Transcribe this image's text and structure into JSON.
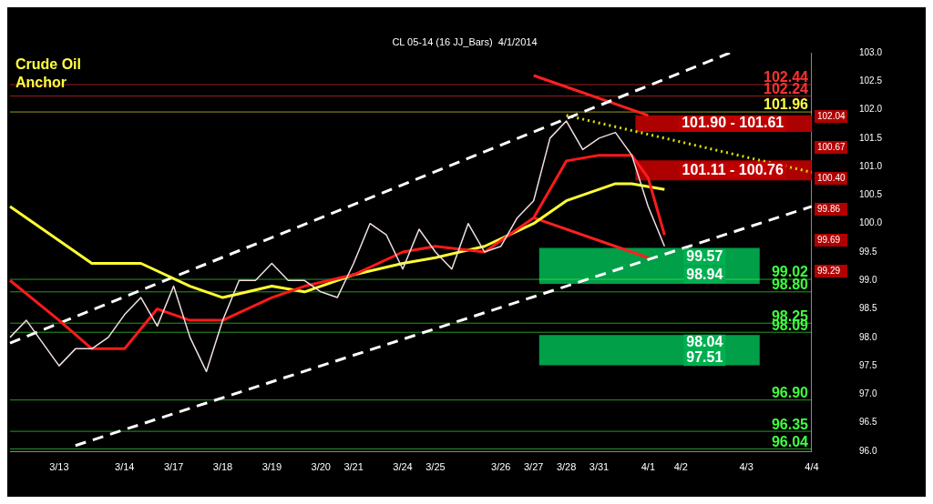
{
  "chart_data": {
    "type": "line",
    "title": "CL 05-14 (16 JJ_Bars)  4/1/2014",
    "categories": [
      null,
      null,
      null,
      "3/13",
      null,
      null,
      null,
      "3/14",
      null,
      null,
      "3/17",
      null,
      null,
      "3/18",
      null,
      null,
      "3/19",
      null,
      null,
      "3/20",
      null,
      "3/21",
      null,
      null,
      "3/24",
      null,
      "3/25",
      null,
      null,
      null,
      "3/26",
      null,
      "3/27",
      null,
      "3/28",
      null,
      "3/31",
      null,
      null,
      "4/1",
      null,
      "4/2",
      null,
      null,
      null,
      "4/3",
      null,
      null,
      null,
      "4/4"
    ],
    "ylim": [
      96,
      103
    ],
    "yticks": [
      {
        "value": 96,
        "label": "96.0"
      },
      96.5,
      {
        "value": 97,
        "label": "97.0"
      },
      97.5,
      {
        "value": 98,
        "label": "98.0"
      },
      98.5,
      {
        "value": 99,
        "label": "99.0"
      },
      99.5,
      {
        "value": 100,
        "label": "100.0"
      },
      100.5,
      {
        "value": 101,
        "label": "101.0"
      },
      101.5,
      {
        "value": 102,
        "label": "102.0"
      },
      102.5,
      {
        "value": 103,
        "label": "103.0"
      }
    ],
    "grid": false,
    "legend": false,
    "marker": "none",
    "series": [
      {
        "type": "line",
        "color": "#f0e0e0",
        "line_style": "solid",
        "values": [
          98.0,
          98.3,
          97.9,
          97.5,
          97.8,
          97.8,
          98.0,
          98.4,
          98.7,
          98.2,
          98.9,
          98.0,
          97.4,
          98.3,
          99.0,
          99.0,
          99.3,
          99.0,
          99.0,
          98.8,
          98.7,
          99.3,
          100.0,
          99.8,
          99.2,
          99.9,
          99.5,
          99.2,
          100.0,
          99.5,
          99.6,
          100.1,
          100.4,
          101.5,
          101.8,
          101.3,
          101.5,
          101.6,
          101.2,
          100.3,
          99.6,
          null,
          null,
          null,
          null,
          null,
          null,
          null,
          null,
          null
        ]
      },
      {
        "type": "line",
        "color": "#ff1a1a",
        "line_style": "solid",
        "values": [
          99.0,
          null,
          null,
          98.3,
          null,
          97.8,
          null,
          97.8,
          null,
          98.5,
          null,
          98.3,
          null,
          98.3,
          null,
          null,
          98.7,
          null,
          98.9,
          null,
          null,
          99.1,
          null,
          null,
          99.5,
          null,
          99.6,
          null,
          null,
          99.5,
          null,
          null,
          100.1,
          null,
          101.1,
          null,
          101.2,
          null,
          101.2,
          100.8,
          99.8,
          null,
          null,
          null,
          null,
          null,
          null,
          null,
          null,
          null
        ]
      },
      {
        "type": "line",
        "color": "#ffff33",
        "line_style": "solid",
        "values": [
          100.3,
          null,
          null,
          99.7,
          null,
          99.3,
          null,
          null,
          99.3,
          null,
          null,
          98.9,
          null,
          98.7,
          null,
          null,
          98.9,
          null,
          98.8,
          null,
          null,
          99.1,
          null,
          null,
          99.3,
          null,
          99.4,
          null,
          null,
          99.6,
          null,
          null,
          100.0,
          null,
          100.4,
          null,
          null,
          100.7,
          100.7,
          null,
          100.6,
          null,
          null,
          null,
          null,
          null,
          null,
          null,
          null,
          null
        ]
      },
      {
        "type": "line",
        "color": "#ffffff",
        "line_style": "dashed",
        "values": [
          97.9,
          null,
          null,
          null,
          null,
          null,
          null,
          null,
          null,
          null,
          null,
          null,
          null,
          null,
          null,
          null,
          null,
          null,
          null,
          null,
          null,
          null,
          null,
          null,
          null,
          null,
          null,
          null,
          null,
          null,
          null,
          null,
          null,
          null,
          null,
          null,
          null,
          null,
          null,
          null,
          null,
          null,
          null,
          null,
          103.0,
          null,
          null,
          null,
          null,
          null
        ]
      },
      {
        "type": "line",
        "color": "#ffffff",
        "line_style": "dashed",
        "values": [
          null,
          null,
          null,
          null,
          96.1,
          null,
          null,
          null,
          null,
          null,
          null,
          null,
          null,
          null,
          null,
          null,
          null,
          null,
          null,
          null,
          null,
          null,
          null,
          null,
          null,
          null,
          null,
          null,
          null,
          null,
          null,
          null,
          null,
          null,
          null,
          null,
          null,
          null,
          null,
          null,
          null,
          null,
          null,
          null,
          null,
          null,
          null,
          null,
          null,
          100.3
        ]
      },
      {
        "type": "line",
        "color": "#e0e000",
        "line_style": "dotted",
        "values": [
          null,
          null,
          null,
          null,
          null,
          null,
          null,
          null,
          null,
          null,
          null,
          null,
          null,
          null,
          null,
          null,
          null,
          null,
          null,
          null,
          null,
          null,
          null,
          null,
          null,
          null,
          null,
          null,
          null,
          null,
          null,
          null,
          null,
          null,
          101.9,
          null,
          null,
          null,
          null,
          null,
          null,
          null,
          null,
          null,
          null,
          null,
          null,
          null,
          null,
          100.9
        ]
      },
      {
        "type": "line",
        "color": "#ff2020",
        "line_style": "solid",
        "values": [
          null,
          null,
          null,
          null,
          null,
          null,
          null,
          null,
          null,
          null,
          null,
          null,
          null,
          null,
          null,
          null,
          null,
          null,
          null,
          null,
          null,
          null,
          null,
          null,
          null,
          null,
          null,
          null,
          null,
          null,
          null,
          null,
          102.6,
          null,
          null,
          null,
          null,
          null,
          null,
          101.9,
          null,
          null,
          null,
          null,
          null,
          null,
          null,
          null,
          null,
          null
        ]
      },
      {
        "type": "line",
        "color": "#ff2020",
        "line_style": "solid",
        "values": [
          null,
          null,
          null,
          null,
          null,
          null,
          null,
          null,
          null,
          null,
          null,
          null,
          null,
          null,
          null,
          null,
          null,
          null,
          null,
          null,
          null,
          null,
          null,
          null,
          null,
          null,
          null,
          null,
          null,
          null,
          null,
          null,
          100.1,
          null,
          null,
          null,
          null,
          null,
          null,
          99.4,
          null,
          null,
          null,
          null,
          null,
          null,
          null,
          null,
          null,
          null
        ]
      }
    ],
    "bands": [
      {
        "axis": "y",
        "from": 101.61,
        "to": 101.9,
        "label": "101.90 - 101.61",
        "color": "#c00000"
      },
      {
        "axis": "y",
        "from": 100.76,
        "to": 101.11,
        "label": "101.11 - 100.76",
        "color": "#c00000"
      },
      {
        "axis": "y",
        "from": 98.94,
        "to": 99.57,
        "label": "99.57\n98.94",
        "color": "#00b050"
      },
      {
        "axis": "y",
        "from": 97.51,
        "to": 98.04,
        "label": "98.04\n97.51",
        "color": "#00b050"
      }
    ],
    "ref_lines": [
      {
        "axis": "y",
        "value": 102.44,
        "label": "102.44",
        "color": "#ff3030"
      },
      {
        "axis": "y",
        "value": 102.24,
        "label": "102.24",
        "color": "#ff3030"
      },
      {
        "axis": "y",
        "value": 101.96,
        "label": "101.96",
        "color": "#ffff40"
      },
      {
        "axis": "y",
        "value": 99.02,
        "label": "99.02",
        "color": "#40ff40"
      },
      {
        "axis": "y",
        "value": 98.8,
        "label": "98.80",
        "color": "#40ff40"
      },
      {
        "axis": "y",
        "value": 98.25,
        "label": "98.25",
        "color": "#40ff40"
      },
      {
        "axis": "y",
        "value": 98.09,
        "label": "98.09",
        "color": "#40ff40"
      },
      {
        "axis": "y",
        "value": 96.9,
        "label": "96.90",
        "color": "#40ff40"
      },
      {
        "axis": "y",
        "value": 96.35,
        "label": "96.35",
        "color": "#40ff40"
      },
      {
        "axis": "y",
        "value": 96.04,
        "label": "96.04",
        "color": "#40ff40"
      }
    ],
    "annotations": [
      "Crude Oil",
      "Anchor",
      "102.04",
      "100.67",
      "100.40",
      "99.86",
      "99.69",
      "99.29"
    ]
  }
}
